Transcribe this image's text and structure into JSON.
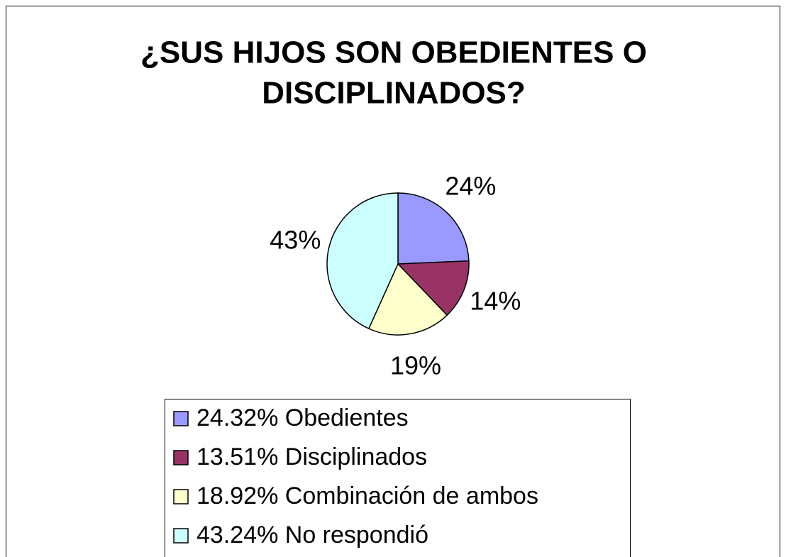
{
  "chart_data": {
    "type": "pie",
    "title": [
      "¿SUS HIJOS SON OBEDIENTES O",
      "DISCIPLINADOS?"
    ],
    "categories": [
      "24.32% Obedientes",
      "13.51% Disciplinados",
      "18.92% Combinación de ambos",
      "43.24% No respondió"
    ],
    "values": [
      24.32,
      13.51,
      18.92,
      43.24
    ],
    "value_labels": [
      "24%",
      "14%",
      "19%",
      "43%"
    ],
    "colors": [
      "#9999ff",
      "#993366",
      "#ffffcc",
      "#ccffff"
    ],
    "legend": "bottom"
  }
}
